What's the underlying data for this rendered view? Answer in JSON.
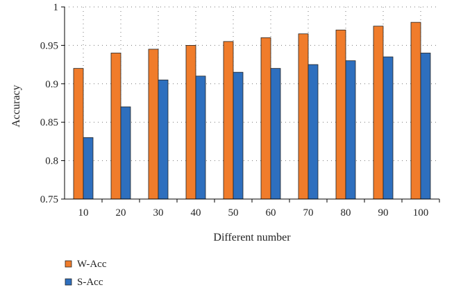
{
  "chart_data": {
    "type": "bar",
    "categories": [
      "10",
      "20",
      "30",
      "40",
      "50",
      "60",
      "70",
      "80",
      "90",
      "100"
    ],
    "series": [
      {
        "name": "W-Acc",
        "values": [
          0.92,
          0.94,
          0.945,
          0.95,
          0.955,
          0.96,
          0.965,
          0.97,
          0.975,
          0.98
        ]
      },
      {
        "name": "S-Acc",
        "values": [
          0.83,
          0.87,
          0.905,
          0.91,
          0.915,
          0.92,
          0.925,
          0.93,
          0.935,
          0.94
        ]
      }
    ],
    "xlabel": "Different number",
    "ylabel": "Accuracy",
    "ylim": [
      0.75,
      1
    ],
    "yticks": [
      "0.75",
      "0.8",
      "0.85",
      "0.9",
      "0.95",
      "1"
    ],
    "grid": true,
    "legend_position": "bottom-left",
    "colors": {
      "W-Acc": "#f07c2b",
      "S-Acc": "#2e6fbe"
    }
  }
}
